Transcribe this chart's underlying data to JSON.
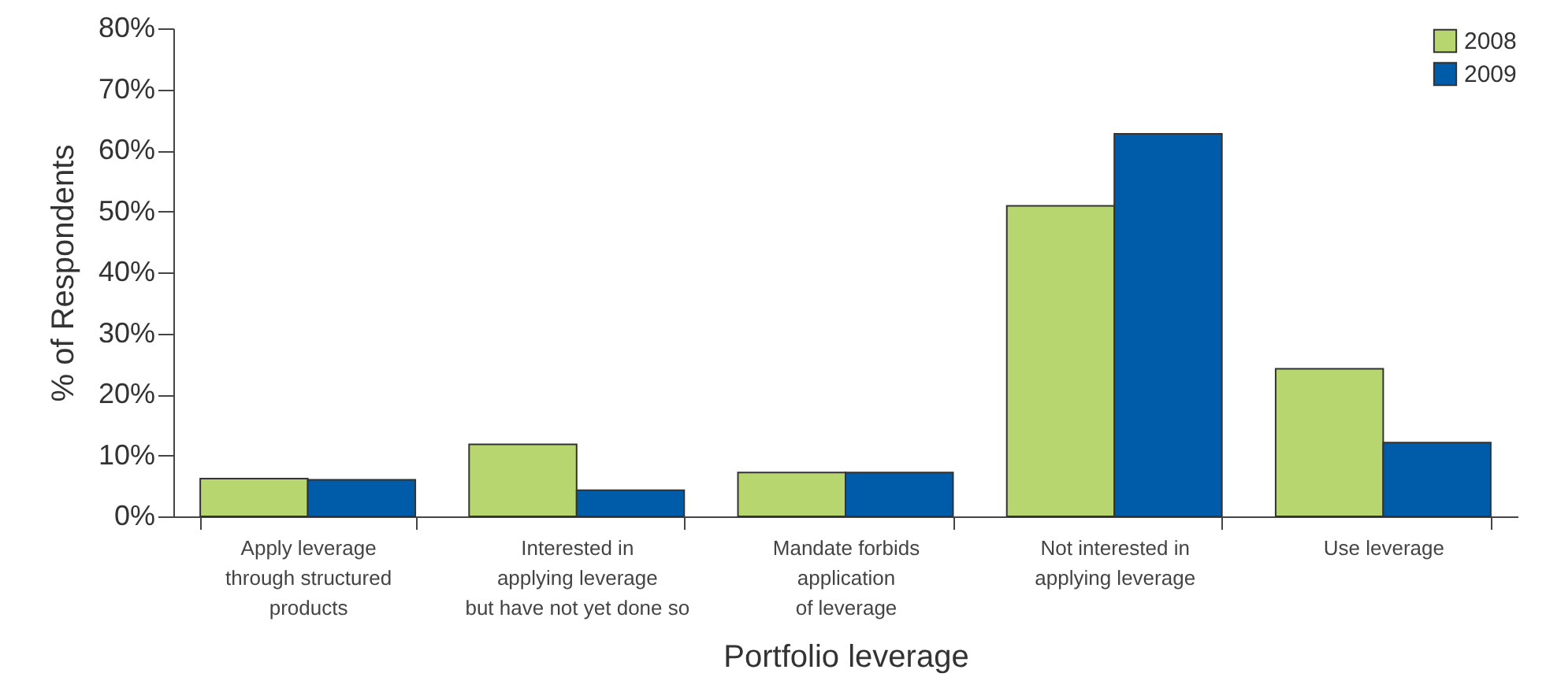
{
  "chart_data": {
    "type": "bar",
    "xlabel": "Portfolio leverage",
    "ylabel": "% of Respondents",
    "categories": [
      "Apply leverage\nthrough structured\nproducts",
      "Interested in\napplying leverage\nbut have not yet done so",
      "Mandate forbids\napplication\nof leverage",
      "Not interested in\napplying leverage",
      "Use leverage"
    ],
    "series": [
      {
        "name": "2008",
        "color": "#b8d66f",
        "values": [
          6.2,
          11.8,
          7.2,
          50.9,
          24.2
        ]
      },
      {
        "name": "2009",
        "color": "#005ba8",
        "values": [
          6.0,
          4.3,
          7.2,
          62.7,
          12.1
        ]
      }
    ],
    "ylim": [
      0,
      80
    ],
    "yticks": [
      {
        "value": 0,
        "label": "0%"
      },
      {
        "value": 10,
        "label": "10%"
      },
      {
        "value": 20,
        "label": "20%"
      },
      {
        "value": 30,
        "label": "30%"
      },
      {
        "value": 40,
        "label": "40%"
      },
      {
        "value": 50,
        "label": "50%"
      },
      {
        "value": 60,
        "label": "60%"
      },
      {
        "value": 70,
        "label": "70%"
      },
      {
        "value": 80,
        "label": "80%"
      }
    ],
    "grid": false,
    "legend": "top right"
  }
}
